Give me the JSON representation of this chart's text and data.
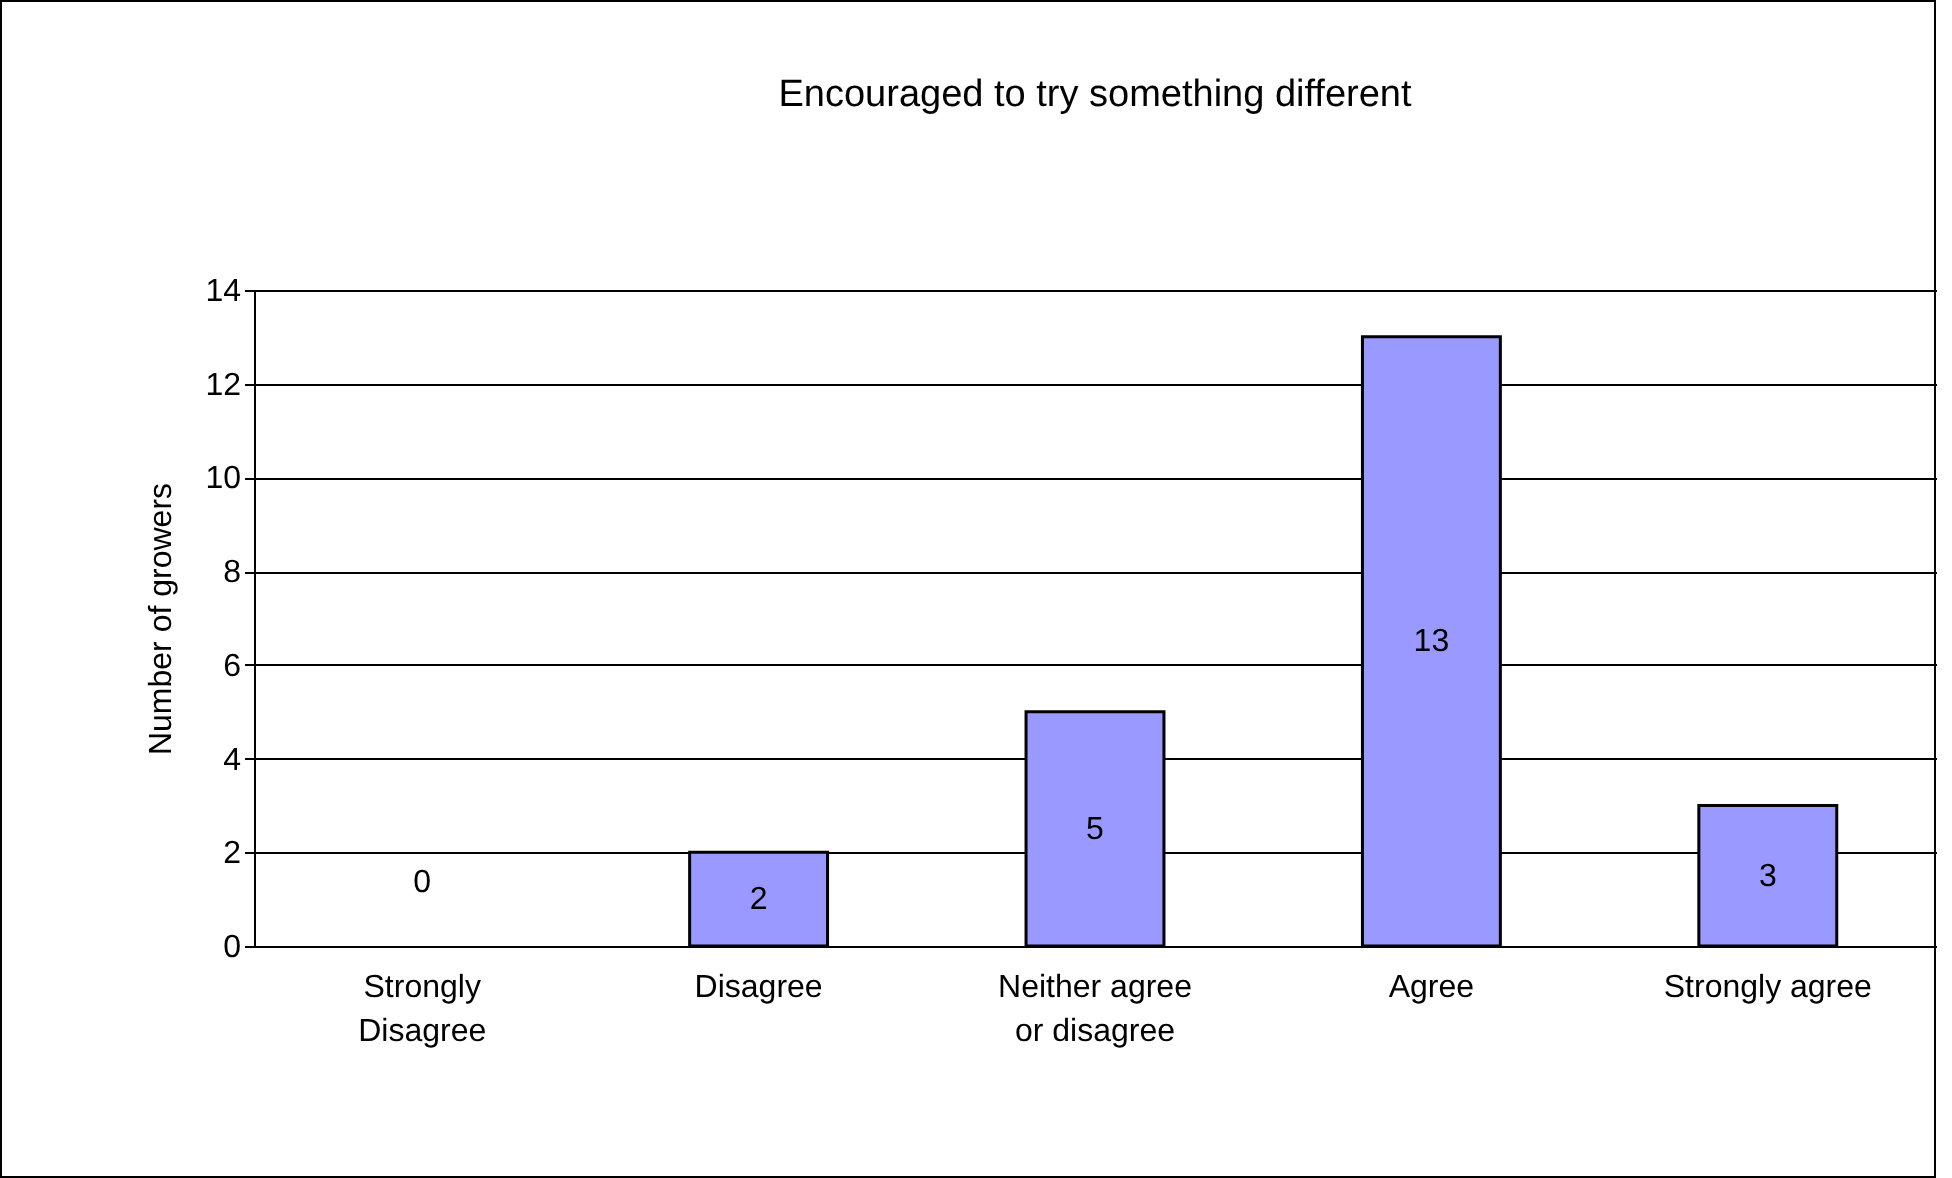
{
  "chart_data": {
    "type": "bar",
    "title": "Encouraged to try something different",
    "ylabel": "Number of growers",
    "categories": [
      "Strongly\nDisagree",
      "Disagree",
      "Neither agree\nor disagree",
      "Agree",
      "Strongly agree"
    ],
    "values": [
      0,
      2,
      5,
      13,
      3
    ],
    "color": "#9999ff",
    "ylim": [
      0,
      14
    ],
    "yticks": [
      0,
      2,
      4,
      6,
      8,
      10,
      12,
      14
    ],
    "grid": "y",
    "data_labels": true
  }
}
